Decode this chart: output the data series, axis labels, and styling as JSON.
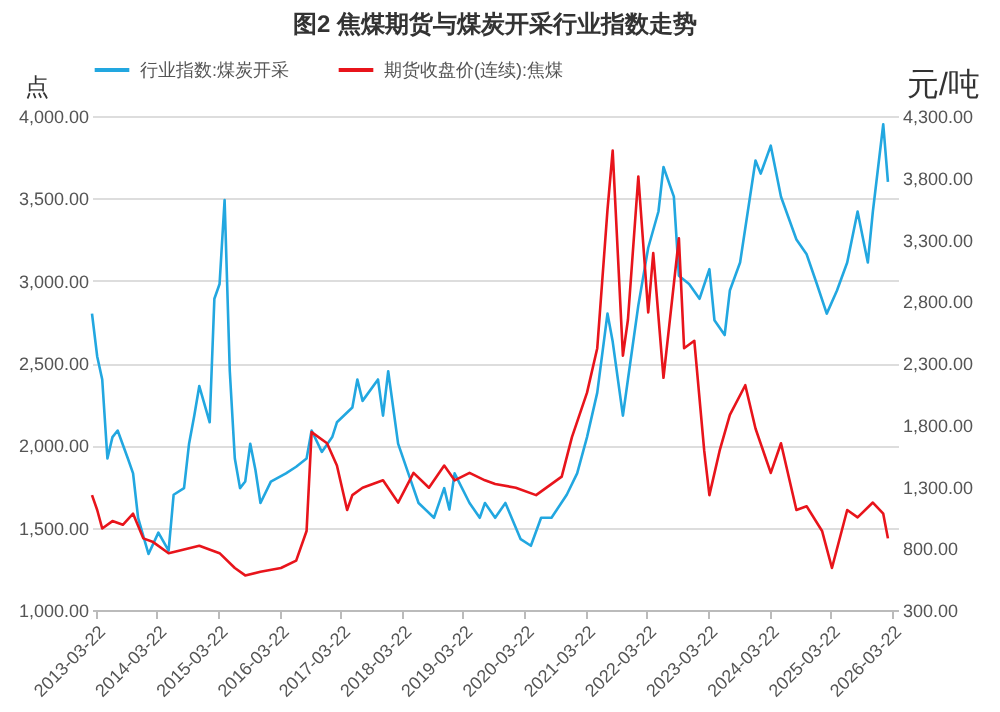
{
  "chart_data": {
    "type": "line",
    "title": "图2 焦煤期货与煤炭开采行业指数走势",
    "ylabel": "点",
    "y2label": "元/吨",
    "xlim": [
      "2013-03-01",
      "2026-04-30"
    ],
    "xticks": [
      "2013-03-22",
      "2014-03-22",
      "2015-03-22",
      "2016-03-22",
      "2017-03-22",
      "2018-03-22",
      "2019-03-22",
      "2020-03-22",
      "2021-03-22",
      "2022-03-22",
      "2023-03-22",
      "2024-03-22",
      "2025-03-22",
      "2026-03-22"
    ],
    "ylim": [
      1000,
      4000
    ],
    "yticks": [
      {
        "value": 1000,
        "label": "1,000.00"
      },
      {
        "value": 1500,
        "label": "1,500.00"
      },
      {
        "value": 2000,
        "label": "2,000.00"
      },
      {
        "value": 2500,
        "label": "2,500.00"
      },
      {
        "value": 3000,
        "label": "3,000.00"
      },
      {
        "value": 3500,
        "label": "3,500.00"
      },
      {
        "value": 4000,
        "label": "4,000.00"
      }
    ],
    "y2lim": [
      300,
      4300
    ],
    "y2ticks": [
      {
        "value": 300,
        "label": "300.00"
      },
      {
        "value": 800,
        "label": "800.00"
      },
      {
        "value": 1300,
        "label": "1,300.00"
      },
      {
        "value": 1800,
        "label": "1,800.00"
      },
      {
        "value": 2300,
        "label": "2,300.00"
      },
      {
        "value": 2800,
        "label": "2,800.00"
      },
      {
        "value": 3300,
        "label": "3,300.00"
      },
      {
        "value": 3800,
        "label": "3,800.00"
      },
      {
        "value": 4300,
        "label": "4,300.00"
      }
    ],
    "grid": "y",
    "legend": "top",
    "series": [
      {
        "name": "行业指数:煤炭开采",
        "color": "#22a7e0",
        "x": [
          "2013-03",
          "2013-04",
          "2013-05",
          "2013-06",
          "2013-07",
          "2013-08",
          "2013-10",
          "2013-11",
          "2013-12",
          "2014-02",
          "2014-04",
          "2014-06",
          "2014-07",
          "2014-09",
          "2014-10",
          "2014-11",
          "2014-12",
          "2015-02",
          "2015-03",
          "2015-04",
          "2015-05",
          "2015-06",
          "2015-07",
          "2015-08",
          "2015-09",
          "2015-10",
          "2015-11",
          "2015-12",
          "2016-02",
          "2016-05",
          "2016-07",
          "2016-09",
          "2016-10",
          "2016-12",
          "2017-02",
          "2017-03",
          "2017-06",
          "2017-07",
          "2017-08",
          "2017-11",
          "2017-12",
          "2018-01",
          "2018-03",
          "2018-05",
          "2018-07",
          "2018-10",
          "2018-12",
          "2019-01",
          "2019-02",
          "2019-05",
          "2019-07",
          "2019-08",
          "2019-10",
          "2019-12",
          "2020-03",
          "2020-05",
          "2020-07",
          "2020-09",
          "2020-12",
          "2021-02",
          "2021-04",
          "2021-06",
          "2021-08",
          "2021-09",
          "2021-11",
          "2021-12",
          "2022-02",
          "2022-04",
          "2022-06",
          "2022-07",
          "2022-09",
          "2022-10",
          "2022-12",
          "2023-02",
          "2023-04",
          "2023-05",
          "2023-07",
          "2023-08",
          "2023-10",
          "2024-01",
          "2024-02",
          "2024-04",
          "2024-06",
          "2024-09",
          "2024-11",
          "2025-01",
          "2025-03",
          "2025-05",
          "2025-07",
          "2025-09",
          "2025-11",
          "2025-12",
          "2026-02",
          "2026-03"
        ],
        "values": [
          2800,
          2540,
          2400,
          1920,
          2050,
          2090,
          1920,
          1830,
          1560,
          1340,
          1470,
          1360,
          1700,
          1740,
          2010,
          2180,
          2360,
          2140,
          2890,
          2980,
          3490,
          2450,
          1920,
          1740,
          1780,
          2010,
          1850,
          1650,
          1780,
          1830,
          1870,
          1920,
          2090,
          1960,
          2050,
          2140,
          2230,
          2400,
          2270,
          2400,
          2180,
          2450,
          2010,
          1830,
          1650,
          1560,
          1740,
          1610,
          1830,
          1650,
          1560,
          1650,
          1560,
          1650,
          1430,
          1390,
          1560,
          1560,
          1700,
          1830,
          2050,
          2320,
          2800,
          2630,
          2180,
          2400,
          2850,
          3200,
          3420,
          3690,
          3510,
          3030,
          2980,
          2890,
          3070,
          2760,
          2670,
          2940,
          3110,
          3730,
          3650,
          3820,
          3510,
          3250,
          3160,
          2980,
          2800,
          2940,
          3110,
          3420,
          3110,
          3420,
          3950,
          3600
        ]
      },
      {
        "name": "期货收盘价(连续):焦煤",
        "color": "#e8141b",
        "axis": "y2",
        "x": [
          "2013-03",
          "2013-04",
          "2013-05",
          "2013-07",
          "2013-09",
          "2013-11",
          "2014-01",
          "2014-03",
          "2014-06",
          "2014-09",
          "2014-12",
          "2015-04",
          "2015-07",
          "2015-09",
          "2015-12",
          "2016-04",
          "2016-07",
          "2016-09",
          "2016-10",
          "2017-01",
          "2017-03",
          "2017-05",
          "2017-06",
          "2017-08",
          "2017-12",
          "2018-03",
          "2018-06",
          "2018-09",
          "2018-12",
          "2019-02",
          "2019-05",
          "2019-08",
          "2019-10",
          "2020-02",
          "2020-06",
          "2020-11",
          "2021-01",
          "2021-04",
          "2021-06",
          "2021-08",
          "2021-09",
          "2021-11",
          "2021-12",
          "2022-02",
          "2022-04",
          "2022-05",
          "2022-07",
          "2022-10",
          "2022-11",
          "2023-01",
          "2023-03",
          "2023-04",
          "2023-06",
          "2023-08",
          "2023-11",
          "2024-01",
          "2024-04",
          "2024-06",
          "2024-09",
          "2024-11",
          "2025-02",
          "2025-04",
          "2025-07",
          "2025-09",
          "2025-12",
          "2026-02",
          "2026-03"
        ],
        "values": [
          1230,
          1110,
          960,
          1020,
          990,
          1080,
          880,
          850,
          760,
          790,
          820,
          760,
          640,
          580,
          610,
          640,
          700,
          940,
          1740,
          1650,
          1470,
          1110,
          1230,
          1290,
          1350,
          1170,
          1410,
          1290,
          1470,
          1350,
          1410,
          1350,
          1320,
          1290,
          1230,
          1380,
          1700,
          2060,
          2420,
          3540,
          4020,
          2360,
          2650,
          3810,
          2710,
          3190,
          2180,
          3310,
          2420,
          2480,
          1590,
          1230,
          1590,
          1880,
          2120,
          1770,
          1410,
          1650,
          1110,
          1140,
          940,
          640,
          1110,
          1050,
          1170,
          1080,
          880
        ]
      }
    ]
  }
}
